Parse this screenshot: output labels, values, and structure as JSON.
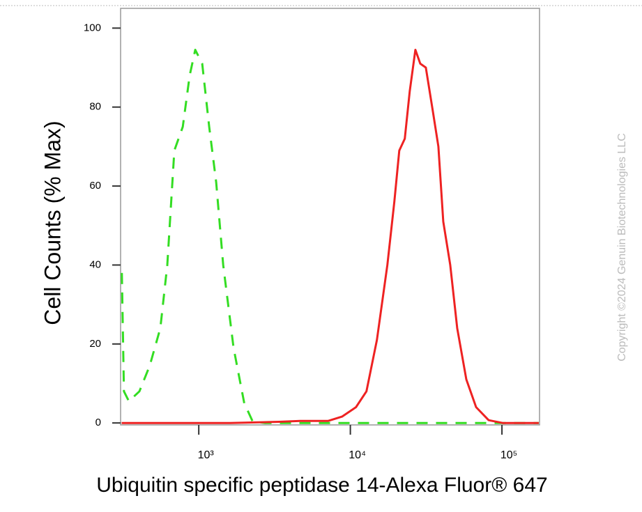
{
  "chart_data": {
    "type": "line",
    "x_label": "Ubiquitin specific peptidase 14-Alexa Fluor® 647",
    "y_label": "Cell Counts (% Max)",
    "watermark": "Copyright ©2024 Genuin Biotechnologies LLC",
    "x_scale": "log",
    "xlim": [
      305,
      177000
    ],
    "ylim": [
      -0.5,
      105
    ],
    "xticks": [
      {
        "value": 1000,
        "label": "10³"
      },
      {
        "value": 10000,
        "label": "10⁴"
      },
      {
        "value": 100000,
        "label": "10⁵"
      }
    ],
    "yticks": [
      0,
      20,
      40,
      60,
      80,
      100
    ],
    "series": [
      {
        "color": "#33dd22",
        "line_style": "dashed",
        "x": [
          311,
          321,
          346,
          406,
          475,
          558,
          620,
          690,
          784,
          871,
          948,
          1054,
          1172,
          1303,
          1449,
          1698,
          1995,
          2265,
          2740,
          175000
        ],
        "values": [
          38,
          8,
          5.5,
          8,
          14.5,
          24,
          40,
          69,
          75,
          88,
          94.5,
          91,
          75,
          61,
          40,
          19,
          5,
          0.4,
          0,
          0
        ]
      },
      {
        "color": "#ee2222",
        "line_style": "solid",
        "x": [
          310,
          1611,
          3388,
          4660,
          7120,
          8810,
          10890,
          12770,
          14970,
          17550,
          19510,
          21020,
          22860,
          24650,
          26840,
          28910,
          31480,
          35000,
          38100,
          41030,
          45600,
          50700,
          58200,
          67500,
          81700,
          101000,
          175000
        ],
        "values": [
          0,
          0,
          0.3,
          0.5,
          0.5,
          1.6,
          4,
          8,
          21,
          40,
          56,
          69,
          72,
          84,
          94.5,
          91,
          90,
          79,
          70,
          51,
          40,
          24,
          11,
          4,
          0.7,
          0,
          0
        ]
      }
    ]
  }
}
